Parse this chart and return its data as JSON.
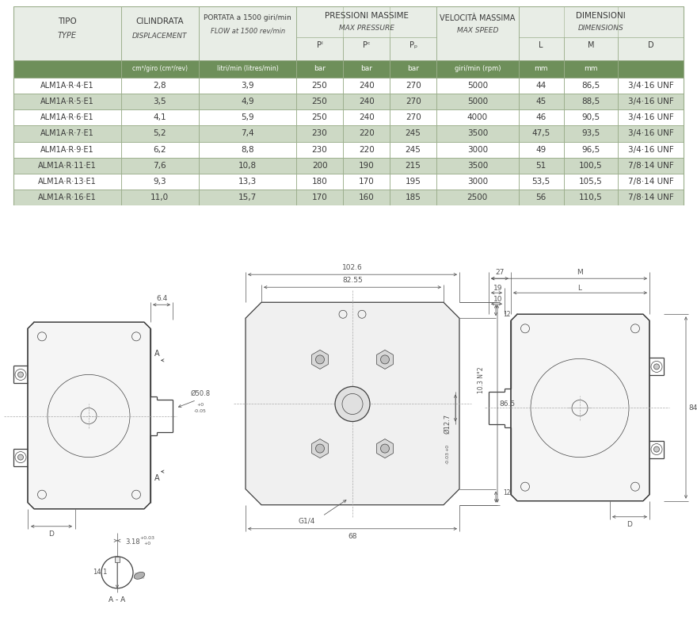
{
  "bg_color": "#ffffff",
  "table_header_bg1": "#e8ede6",
  "table_header_bg2": "#6e8f5a",
  "table_row_bg_light": "#ffffff",
  "table_row_bg_alt": "#cdd9c5",
  "table_border_color": "#9aad8a",
  "header_text_color": "#3a3a3a",
  "header_italic_color": "#4a4a4a",
  "cell_text_color": "#3a3a3a",
  "unit_text_color": "#ffffff",
  "rows": [
    [
      "ALM1A·R·4·E1",
      "2,8",
      "3,9",
      "250",
      "240",
      "270",
      "5000",
      "44",
      "86,5",
      "3/4·16 UNF"
    ],
    [
      "ALM1A·R·5·E1",
      "3,5",
      "4,9",
      "250",
      "240",
      "270",
      "5000",
      "45",
      "88,5",
      "3/4·16 UNF"
    ],
    [
      "ALM1A·R·6·E1",
      "4,1",
      "5,9",
      "250",
      "240",
      "270",
      "4000",
      "46",
      "90,5",
      "3/4·16 UNF"
    ],
    [
      "ALM1A·R·7·E1",
      "5,2",
      "7,4",
      "230",
      "220",
      "245",
      "3500",
      "47,5",
      "93,5",
      "3/4·16 UNF"
    ],
    [
      "ALM1A·R·9·E1",
      "6,2",
      "8,8",
      "230",
      "220",
      "245",
      "3000",
      "49",
      "96,5",
      "3/4·16 UNF"
    ],
    [
      "ALM1A·R·11·E1",
      "7,6",
      "10,8",
      "200",
      "190",
      "215",
      "3500",
      "51",
      "100,5",
      "7/8·14 UNF"
    ],
    [
      "ALM1A·R·13·E1",
      "9,3",
      "13,3",
      "180",
      "170",
      "195",
      "3000",
      "53,5",
      "105,5",
      "7/8·14 UNF"
    ],
    [
      "ALM1A·R·16·E1",
      "11,0",
      "15,7",
      "170",
      "160",
      "185",
      "2500",
      "56",
      "110,5",
      "7/8·14 UNF"
    ]
  ],
  "drawing_color": "#404040",
  "dim_color": "#555555",
  "thin_color": "#666666"
}
